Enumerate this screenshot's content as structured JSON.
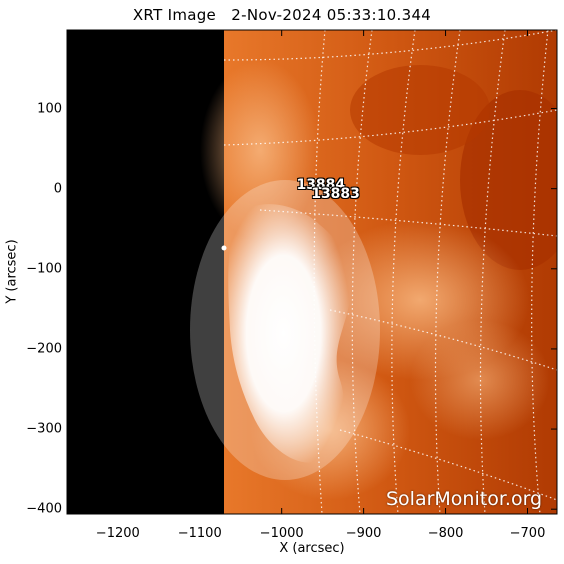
{
  "title": "XRT Image   2-Nov-2024 05:33:10.344",
  "watermark": "SolarMonitor.org",
  "chart_data": {
    "type": "heatmap",
    "title": "XRT Image   2-Nov-2024 05:33:10.344",
    "xlabel": "X (arcsec)",
    "ylabel": "Y (arcsec)",
    "xlim": [
      -1262,
      -664
    ],
    "ylim": [
      -406,
      198
    ],
    "x_ticks": [
      "−1200",
      "−1100",
      "−1000",
      "−900",
      "−800",
      "−700"
    ],
    "x_tick_values": [
      -1200,
      -1100,
      -1000,
      -900,
      -800,
      -700
    ],
    "y_ticks": [
      "100",
      "0",
      "−100",
      "−200",
      "−300",
      "−400"
    ],
    "y_tick_values": [
      100,
      0,
      -100,
      -200,
      -300,
      -400
    ],
    "colormap": [
      "#000000",
      "#b33a00",
      "#de6a1c",
      "#f2a05a",
      "#ffffff"
    ],
    "grid": "heliographic dotted",
    "active_regions": [
      {
        "label": "13884",
        "x": -960,
        "y": 0
      },
      {
        "label": "13883",
        "x": -942,
        "y": -12
      }
    ]
  }
}
